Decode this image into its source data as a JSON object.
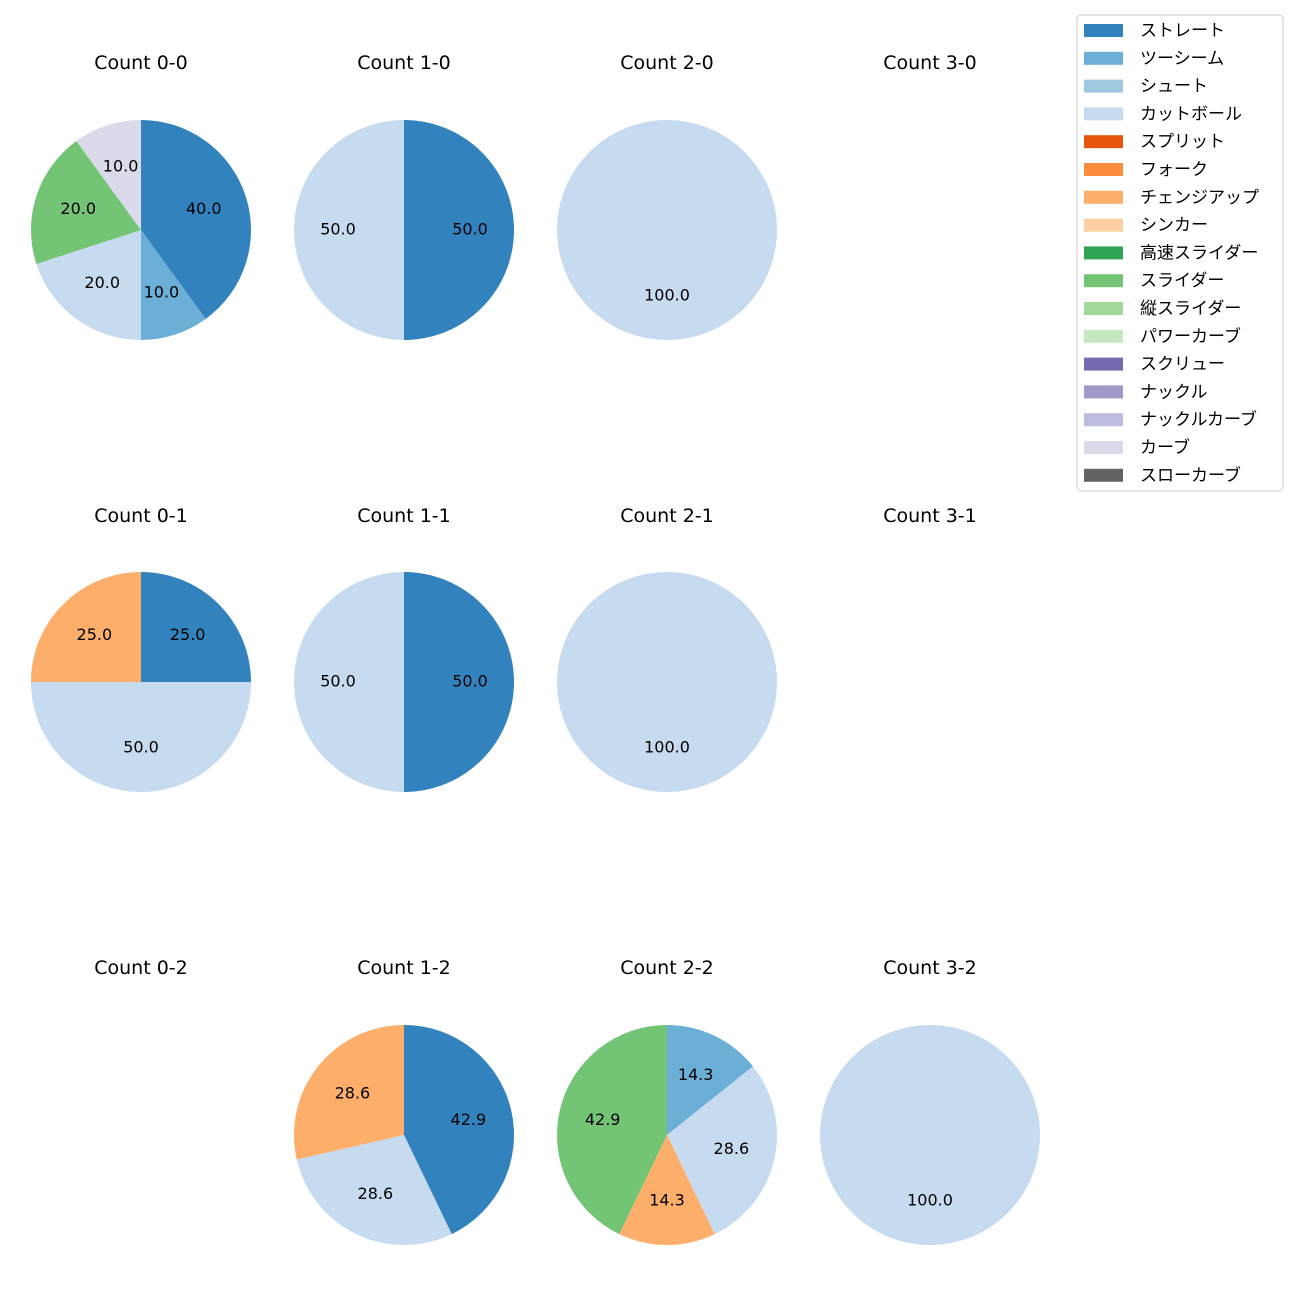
{
  "chart_data": {
    "type": "pie",
    "legend_position": "top-right",
    "legend": [
      {
        "name": "ストレート",
        "color": "#3182bd"
      },
      {
        "name": "ツーシーム",
        "color": "#6baed6"
      },
      {
        "name": "シュート",
        "color": "#9ecae1"
      },
      {
        "name": "カットボール",
        "color": "#c6dbef"
      },
      {
        "name": "スプリット",
        "color": "#e6550d"
      },
      {
        "name": "フォーク",
        "color": "#fd8d3c"
      },
      {
        "name": "チェンジアップ",
        "color": "#fdae6b"
      },
      {
        "name": "シンカー",
        "color": "#fdd0a2"
      },
      {
        "name": "高速スライダー",
        "color": "#31a354"
      },
      {
        "name": "スライダー",
        "color": "#74c476"
      },
      {
        "name": "縦スライダー",
        "color": "#a1d99b"
      },
      {
        "name": "パワーカーブ",
        "color": "#c7e9c0"
      },
      {
        "name": "スクリュー",
        "color": "#756bb1"
      },
      {
        "name": "ナックル",
        "color": "#9e9ac8"
      },
      {
        "name": "ナックルカーブ",
        "color": "#bcbddc"
      },
      {
        "name": "カーブ",
        "color": "#dadaeb"
      },
      {
        "name": "スローカーブ",
        "color": "#636363"
      }
    ],
    "panels": [
      {
        "title": "Count 0-0",
        "slices": [
          {
            "pitch": "ストレート",
            "value": 40.0,
            "label": "40.0"
          },
          {
            "pitch": "ツーシーム",
            "value": 10.0,
            "label": "10.0"
          },
          {
            "pitch": "カットボール",
            "value": 20.0,
            "label": "20.0"
          },
          {
            "pitch": "スライダー",
            "value": 20.0,
            "label": "20.0"
          },
          {
            "pitch": "カーブ",
            "value": 10.0,
            "label": "10.0"
          }
        ]
      },
      {
        "title": "Count 1-0",
        "slices": [
          {
            "pitch": "ストレート",
            "value": 50.0,
            "label": "50.0"
          },
          {
            "pitch": "カットボール",
            "value": 50.0,
            "label": "50.0"
          }
        ]
      },
      {
        "title": "Count 2-0",
        "slices": [
          {
            "pitch": "カットボール",
            "value": 100.0,
            "label": "100.0"
          }
        ]
      },
      {
        "title": "Count 3-0",
        "slices": []
      },
      {
        "title": "Count 0-1",
        "slices": [
          {
            "pitch": "ストレート",
            "value": 25.0,
            "label": "25.0"
          },
          {
            "pitch": "カットボール",
            "value": 50.0,
            "label": "50.0"
          },
          {
            "pitch": "チェンジアップ",
            "value": 25.0,
            "label": "25.0"
          }
        ]
      },
      {
        "title": "Count 1-1",
        "slices": [
          {
            "pitch": "ストレート",
            "value": 50.0,
            "label": "50.0"
          },
          {
            "pitch": "カットボール",
            "value": 50.0,
            "label": "50.0"
          }
        ]
      },
      {
        "title": "Count 2-1",
        "slices": [
          {
            "pitch": "カットボール",
            "value": 100.0,
            "label": "100.0"
          }
        ]
      },
      {
        "title": "Count 3-1",
        "slices": []
      },
      {
        "title": "Count 0-2",
        "slices": []
      },
      {
        "title": "Count 1-2",
        "slices": [
          {
            "pitch": "ストレート",
            "value": 42.9,
            "label": "42.9"
          },
          {
            "pitch": "カットボール",
            "value": 28.6,
            "label": "28.6"
          },
          {
            "pitch": "チェンジアップ",
            "value": 28.6,
            "label": "28.6"
          }
        ]
      },
      {
        "title": "Count 2-2",
        "slices": [
          {
            "pitch": "ツーシーム",
            "value": 14.3,
            "label": "14.3"
          },
          {
            "pitch": "カットボール",
            "value": 28.6,
            "label": "28.6"
          },
          {
            "pitch": "チェンジアップ",
            "value": 14.3,
            "label": "14.3"
          },
          {
            "pitch": "スライダー",
            "value": 42.9,
            "label": "42.9"
          }
        ]
      },
      {
        "title": "Count 3-2",
        "slices": [
          {
            "pitch": "カットボール",
            "value": 100.0,
            "label": "100.0"
          }
        ]
      }
    ]
  }
}
